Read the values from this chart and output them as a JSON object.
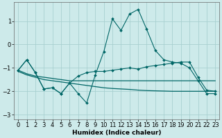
{
  "xlabel": "Humidex (Indice chaleur)",
  "background_color": "#cdeaea",
  "grid_color": "#a8d0d0",
  "line_color": "#006666",
  "x_values": [
    0,
    1,
    2,
    3,
    4,
    5,
    6,
    7,
    8,
    9,
    10,
    11,
    12,
    13,
    14,
    15,
    16,
    17,
    18,
    19,
    20,
    21,
    22,
    23
  ],
  "line1_y": [
    -1.1,
    -0.65,
    -1.2,
    -1.9,
    -1.85,
    -2.1,
    -1.65,
    -1.35,
    -1.2,
    -1.15,
    -1.15,
    -1.1,
    -1.05,
    -1.0,
    -1.05,
    -0.95,
    -0.9,
    -0.85,
    -0.8,
    -0.75,
    -0.75,
    -1.4,
    -1.95,
    -2.0
  ],
  "line2_y": [
    -1.1,
    -0.65,
    -1.2,
    -1.9,
    -1.85,
    -2.1,
    -1.65,
    -2.1,
    -2.5,
    -1.3,
    -0.3,
    1.1,
    0.6,
    1.3,
    1.5,
    0.65,
    -0.25,
    -0.65,
    -0.75,
    -0.8,
    -1.0,
    -1.55,
    -2.1,
    -2.1
  ],
  "line3_y": [
    -1.15,
    -1.3,
    -1.4,
    -1.5,
    -1.55,
    -1.6,
    -1.65,
    -1.7,
    -1.75,
    -1.8,
    -1.85,
    -1.88,
    -1.9,
    -1.92,
    -1.95,
    -1.97,
    -1.98,
    -1.99,
    -2.0,
    -2.0,
    -2.0,
    -2.0,
    -2.0,
    -2.0
  ],
  "line4_y": [
    -1.1,
    -1.25,
    -1.35,
    -1.4,
    -1.45,
    -1.5,
    -1.55,
    -1.55,
    -1.55,
    -1.55,
    -1.55,
    -1.55,
    -1.55,
    -1.55,
    -1.55,
    -1.55,
    -1.55,
    -1.55,
    -1.55,
    -1.55,
    -1.55,
    -1.55,
    -1.55,
    -1.55
  ],
  "xlim": [
    -0.5,
    23.5
  ],
  "ylim": [
    -3.2,
    1.8
  ],
  "yticks": [
    -3,
    -2,
    -1,
    0,
    1
  ],
  "xtick_labels": [
    "0",
    "1",
    "2",
    "3",
    "4",
    "5",
    "6",
    "7",
    "8",
    "9",
    "10",
    "11",
    "12",
    "13",
    "14",
    "15",
    "16",
    "17",
    "18",
    "19",
    "20",
    "21",
    "22",
    "23"
  ]
}
